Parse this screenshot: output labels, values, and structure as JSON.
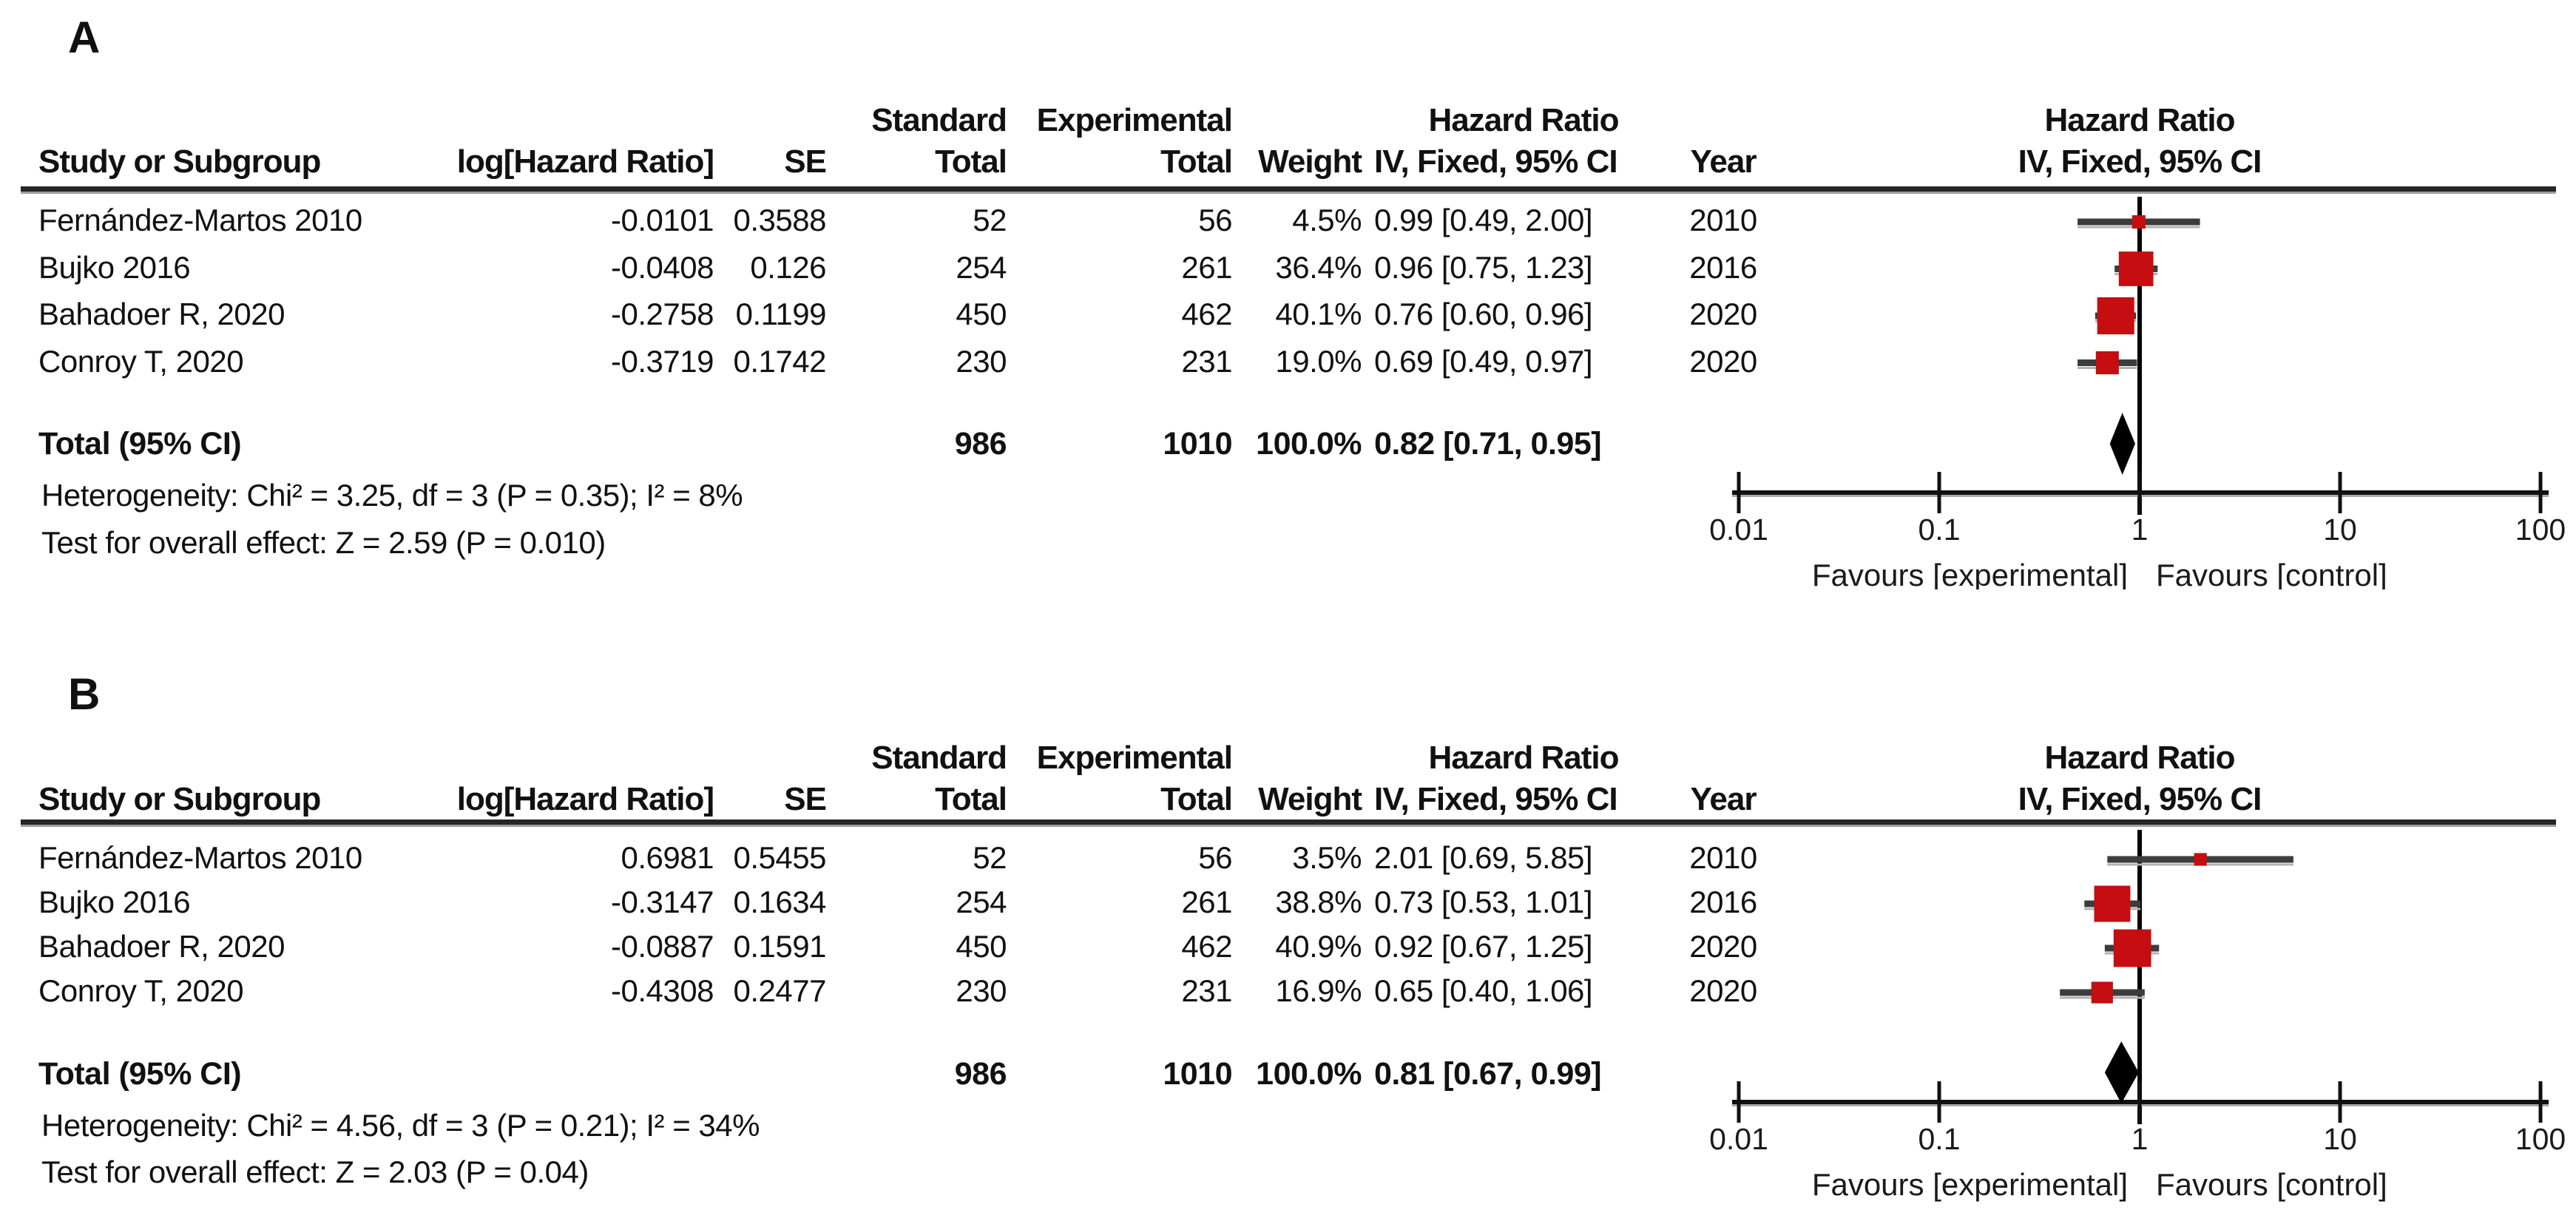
{
  "colors": {
    "marker_red": "#C60D12",
    "diamond_black": "#000000",
    "ci_line": "#3c3c3c",
    "ci_line_shadow": "#b3b3b3",
    "axis_black": "#111111",
    "axis_shadow": "#aaaaaa"
  },
  "table": {
    "headers_line1": {
      "standard": "Standard",
      "experimental": "Experimental",
      "hazard_ratio": "Hazard Ratio"
    },
    "headers_line2": {
      "study": "Study or Subgroup",
      "loghr": "log[Hazard Ratio]",
      "se": "SE",
      "total": "Total",
      "weight": "Weight",
      "iv_fixed": "IV, Fixed, 95% CI",
      "year": "Year"
    },
    "plot_header_line1": "Hazard Ratio",
    "plot_header_line2": "IV, Fixed, 95% CI"
  },
  "axis": {
    "ticks": [
      "0.01",
      "0.1",
      "1",
      "10",
      "100"
    ],
    "favours_left": "Favours [experimental]",
    "favours_right": "Favours [control]"
  },
  "panels": [
    {
      "label": "A",
      "rows": [
        {
          "study": "Fernández-Martos 2010",
          "loghr": "-0.0101",
          "se": "0.3588",
          "std_total": "52",
          "exp_total": "56",
          "weight": "4.5%",
          "hr_ci": "0.99 [0.49, 2.00]",
          "year": "2010"
        },
        {
          "study": "Bujko 2016",
          "loghr": "-0.0408",
          "se": "0.126",
          "std_total": "254",
          "exp_total": "261",
          "weight": "36.4%",
          "hr_ci": "0.96 [0.75, 1.23]",
          "year": "2016"
        },
        {
          "study": "Bahadoer R, 2020",
          "loghr": "-0.2758",
          "se": "0.1199",
          "std_total": "450",
          "exp_total": "462",
          "weight": "40.1%",
          "hr_ci": "0.76 [0.60, 0.96]",
          "year": "2020"
        },
        {
          "study": "Conroy T, 2020",
          "loghr": "-0.3719",
          "se": "0.1742",
          "std_total": "230",
          "exp_total": "231",
          "weight": "19.0%",
          "hr_ci": "0.69 [0.49, 0.97]",
          "year": "2020"
        }
      ],
      "total": {
        "label": "Total (95% CI)",
        "std_total": "986",
        "exp_total": "1010",
        "weight": "100.0%",
        "hr_ci": "0.82 [0.71, 0.95]"
      },
      "heterogeneity": "Heterogeneity: Chi² = 3.25, df = 3 (P = 0.35); I² = 8%",
      "overall_effect": "Test for overall effect: Z = 2.59 (P = 0.010)"
    },
    {
      "label": "B",
      "rows": [
        {
          "study": "Fernández-Martos 2010",
          "loghr": "0.6981",
          "se": "0.5455",
          "std_total": "52",
          "exp_total": "56",
          "weight": "3.5%",
          "hr_ci": "2.01 [0.69, 5.85]",
          "year": "2010"
        },
        {
          "study": "Bujko 2016",
          "loghr": "-0.3147",
          "se": "0.1634",
          "std_total": "254",
          "exp_total": "261",
          "weight": "38.8%",
          "hr_ci": "0.73 [0.53, 1.01]",
          "year": "2016"
        },
        {
          "study": "Bahadoer R, 2020",
          "loghr": "-0.0887",
          "se": "0.1591",
          "std_total": "450",
          "exp_total": "462",
          "weight": "40.9%",
          "hr_ci": "0.92 [0.67, 1.25]",
          "year": "2020"
        },
        {
          "study": "Conroy T, 2020",
          "loghr": "-0.4308",
          "se": "0.2477",
          "std_total": "230",
          "exp_total": "231",
          "weight": "16.9%",
          "hr_ci": "0.65 [0.40, 1.06]",
          "year": "2020"
        }
      ],
      "total": {
        "label": "Total (95% CI)",
        "std_total": "986",
        "exp_total": "1010",
        "weight": "100.0%",
        "hr_ci": "0.81 [0.67, 0.99]"
      },
      "heterogeneity": "Heterogeneity: Chi² = 4.56, df = 3 (P = 0.21); I² = 34%",
      "overall_effect": "Test for overall effect: Z = 2.03 (P = 0.04)"
    }
  ],
  "chart_data": [
    {
      "type": "forest",
      "panel": "A",
      "title": "Hazard Ratio",
      "model": "IV, Fixed, 95% CI",
      "x_scale": "log10",
      "xlim": [
        0.01,
        100
      ],
      "x_ticks": [
        0.01,
        0.1,
        1,
        10,
        100
      ],
      "null_line": 1,
      "studies": [
        {
          "name": "Fernández-Martos 2010",
          "log_hr": -0.0101,
          "se": 0.3588,
          "hr": 0.99,
          "ci": [
            0.49,
            2.0
          ],
          "weight_pct": 4.5,
          "year": 2010
        },
        {
          "name": "Bujko 2016",
          "log_hr": -0.0408,
          "se": 0.126,
          "hr": 0.96,
          "ci": [
            0.75,
            1.23
          ],
          "weight_pct": 36.4,
          "year": 2016
        },
        {
          "name": "Bahadoer R, 2020",
          "log_hr": -0.2758,
          "se": 0.1199,
          "hr": 0.76,
          "ci": [
            0.6,
            0.96
          ],
          "weight_pct": 40.1,
          "year": 2020
        },
        {
          "name": "Conroy T, 2020",
          "log_hr": -0.3719,
          "se": 0.1742,
          "hr": 0.69,
          "ci": [
            0.49,
            0.97
          ],
          "weight_pct": 19.0,
          "year": 2020
        }
      ],
      "total": {
        "name": "Total (95% CI)",
        "hr": 0.82,
        "ci": [
          0.71,
          0.95
        ],
        "weight_pct": 100.0
      },
      "heterogeneity": {
        "chi2": 3.25,
        "df": 3,
        "p": 0.35,
        "i2_pct": 8
      },
      "overall_effect": {
        "z": 2.59,
        "p": 0.01
      },
      "favours_left": "Favours [experimental]",
      "favours_right": "Favours [control]"
    },
    {
      "type": "forest",
      "panel": "B",
      "title": "Hazard Ratio",
      "model": "IV, Fixed, 95% CI",
      "x_scale": "log10",
      "xlim": [
        0.01,
        100
      ],
      "x_ticks": [
        0.01,
        0.1,
        1,
        10,
        100
      ],
      "null_line": 1,
      "studies": [
        {
          "name": "Fernández-Martos 2010",
          "log_hr": 0.6981,
          "se": 0.5455,
          "hr": 2.01,
          "ci": [
            0.69,
            5.85
          ],
          "weight_pct": 3.5,
          "year": 2010
        },
        {
          "name": "Bujko 2016",
          "log_hr": -0.3147,
          "se": 0.1634,
          "hr": 0.73,
          "ci": [
            0.53,
            1.01
          ],
          "weight_pct": 38.8,
          "year": 2016
        },
        {
          "name": "Bahadoer R, 2020",
          "log_hr": -0.0887,
          "se": 0.1591,
          "hr": 0.92,
          "ci": [
            0.67,
            1.25
          ],
          "weight_pct": 40.9,
          "year": 2020
        },
        {
          "name": "Conroy T, 2020",
          "log_hr": -0.4308,
          "se": 0.2477,
          "hr": 0.65,
          "ci": [
            0.4,
            1.06
          ],
          "weight_pct": 16.9,
          "year": 2020
        }
      ],
      "total": {
        "name": "Total (95% CI)",
        "hr": 0.81,
        "ci": [
          0.67,
          0.99
        ],
        "weight_pct": 100.0
      },
      "heterogeneity": {
        "chi2": 4.56,
        "df": 3,
        "p": 0.21,
        "i2_pct": 34
      },
      "overall_effect": {
        "z": 2.03,
        "p": 0.04
      },
      "favours_left": "Favours [experimental]",
      "favours_right": "Favours [control]"
    }
  ]
}
